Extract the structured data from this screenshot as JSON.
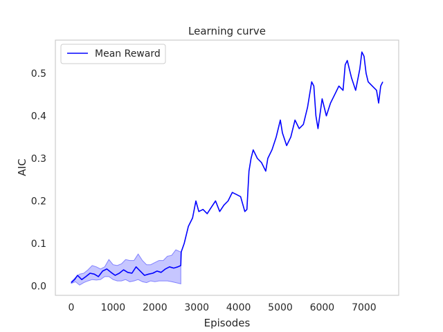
{
  "chart_data": {
    "type": "line",
    "title": "Learning curve",
    "xlabel": "Episodes",
    "ylabel": "AIC",
    "xlim": [
      -380,
      7830
    ],
    "ylim": [
      -0.022,
      0.578
    ],
    "xticks": [
      0,
      1000,
      2000,
      3000,
      4000,
      5000,
      6000,
      7000
    ],
    "yticks": [
      0.0,
      0.1,
      0.2,
      0.3,
      0.4,
      0.5
    ],
    "ytick_labels": [
      "0.0",
      "0.1",
      "0.2",
      "0.3",
      "0.4",
      "0.5"
    ],
    "grid": false,
    "legend": {
      "placement": "top-left",
      "entries": [
        "Mean Reward"
      ]
    },
    "colors": {
      "line": "#0000ff",
      "band": "#8080ff",
      "frame": "#cccccc"
    },
    "series": [
      {
        "name": "Mean Reward",
        "x": [
          0,
          80,
          150,
          250,
          350,
          450,
          550,
          650,
          750,
          850,
          950,
          1050,
          1150,
          1250,
          1350,
          1450,
          1550,
          1650,
          1750,
          1850,
          1950,
          2050,
          2150,
          2250,
          2350,
          2450,
          2550,
          2620,
          2630,
          2700,
          2800,
          2900,
          2980,
          3050,
          3150,
          3250,
          3350,
          3450,
          3550,
          3650,
          3750,
          3850,
          3950,
          4050,
          4150,
          4200,
          4250,
          4300,
          4350,
          4450,
          4550,
          4650,
          4700,
          4800,
          4900,
          4950,
          5000,
          5050,
          5150,
          5250,
          5350,
          5450,
          5550,
          5650,
          5750,
          5800,
          5850,
          5900,
          6000,
          6100,
          6200,
          6300,
          6400,
          6500,
          6550,
          6600,
          6700,
          6800,
          6900,
          6950,
          7000,
          7050,
          7100,
          7200,
          7300,
          7350,
          7400,
          7450
        ],
        "y": [
          0.008,
          0.015,
          0.025,
          0.015,
          0.022,
          0.03,
          0.028,
          0.022,
          0.035,
          0.04,
          0.032,
          0.025,
          0.03,
          0.038,
          0.032,
          0.03,
          0.045,
          0.035,
          0.025,
          0.028,
          0.03,
          0.035,
          0.032,
          0.04,
          0.045,
          0.042,
          0.045,
          0.048,
          0.08,
          0.1,
          0.14,
          0.16,
          0.2,
          0.175,
          0.18,
          0.17,
          0.185,
          0.2,
          0.175,
          0.19,
          0.2,
          0.22,
          0.215,
          0.21,
          0.175,
          0.18,
          0.27,
          0.3,
          0.32,
          0.3,
          0.29,
          0.27,
          0.3,
          0.32,
          0.35,
          0.37,
          0.39,
          0.36,
          0.33,
          0.35,
          0.39,
          0.37,
          0.38,
          0.42,
          0.48,
          0.47,
          0.4,
          0.37,
          0.44,
          0.4,
          0.43,
          0.45,
          0.47,
          0.46,
          0.52,
          0.53,
          0.49,
          0.46,
          0.51,
          0.55,
          0.54,
          0.5,
          0.48,
          0.47,
          0.46,
          0.43,
          0.47,
          0.48
        ]
      }
    ],
    "band": {
      "x": [
        0,
        100,
        200,
        300,
        400,
        500,
        600,
        700,
        800,
        900,
        1000,
        1100,
        1200,
        1300,
        1400,
        1500,
        1600,
        1700,
        1800,
        1900,
        2000,
        2100,
        2200,
        2300,
        2400,
        2500,
        2620
      ],
      "lower": [
        0.006,
        0.01,
        0.002,
        0.008,
        0.012,
        0.015,
        0.014,
        0.015,
        0.022,
        0.022,
        0.015,
        0.012,
        0.012,
        0.015,
        0.01,
        0.012,
        0.015,
        0.01,
        0.008,
        0.012,
        0.01,
        0.012,
        0.012,
        0.012,
        0.01,
        0.008,
        0.005
      ],
      "upper": [
        0.01,
        0.02,
        0.028,
        0.03,
        0.038,
        0.048,
        0.045,
        0.04,
        0.045,
        0.062,
        0.05,
        0.048,
        0.052,
        0.062,
        0.06,
        0.06,
        0.075,
        0.06,
        0.05,
        0.05,
        0.055,
        0.06,
        0.06,
        0.07,
        0.072,
        0.085,
        0.08
      ]
    }
  }
}
